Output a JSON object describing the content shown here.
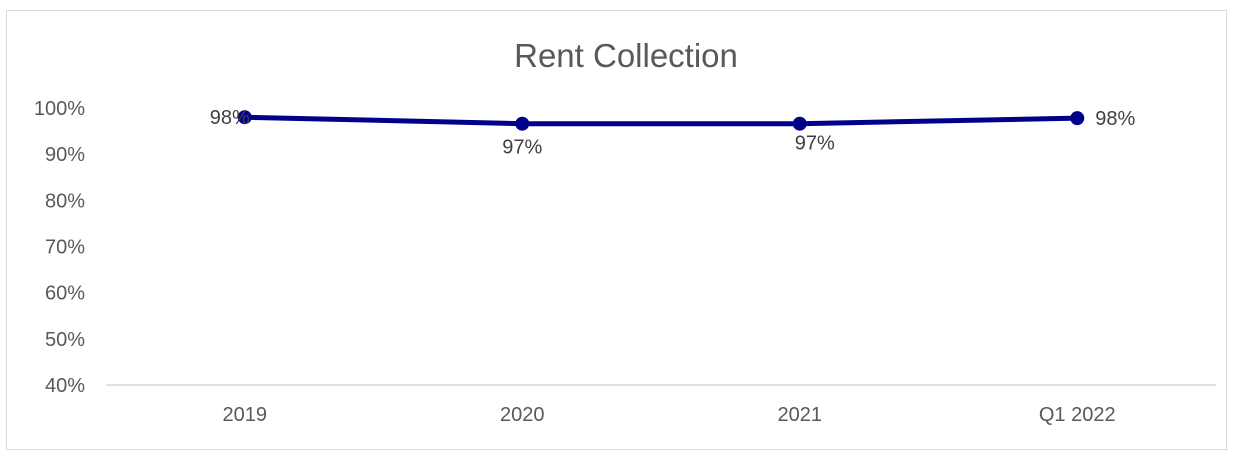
{
  "chart_data": {
    "type": "line",
    "title": "Rent Collection",
    "xlabel": "",
    "ylabel": "",
    "categories": [
      "2019",
      "2020",
      "2021",
      "Q1 2022"
    ],
    "series": [
      {
        "values": [
          98,
          96.6,
          96.6,
          97.8
        ],
        "labels": [
          "98%",
          "97%",
          "97%",
          "98%"
        ],
        "color": "#00008b"
      }
    ],
    "ylim": [
      40,
      100
    ],
    "yticks": [
      40,
      50,
      60,
      70,
      80,
      90,
      100
    ],
    "ytick_labels": [
      "40%",
      "50%",
      "60%",
      "70%",
      "80%",
      "90%",
      "100%"
    ],
    "grid": false,
    "legend": "none"
  }
}
